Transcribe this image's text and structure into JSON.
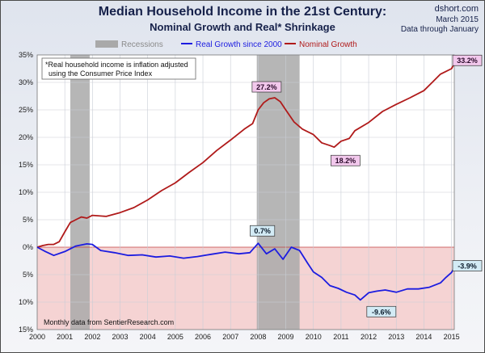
{
  "header": {
    "title": "Median Household Income in the 21st Century:",
    "subtitle": "Nominal  Growth and Real* Shrinkage",
    "source": "dshort.com",
    "date": "March 2015",
    "through": "Data through January"
  },
  "colors": {
    "nominal": "#b01a1a",
    "real": "#1c1ce0",
    "recession": "#a9a9a9",
    "negative_zone": "#f5d3d3",
    "callout_nominal_bg": "#f2c8ec",
    "callout_real_bg": "#d3ebf5"
  },
  "chart_data": {
    "type": "line",
    "title": "Median Household Income in the 21st Century:",
    "subtitle": "Nominal  Growth and Real* Shrinkage",
    "x_tick_labels": [
      "2000",
      "2001",
      "2002",
      "2003",
      "2004",
      "2005",
      "2006",
      "2007",
      "2008",
      "2009",
      "2010",
      "2011",
      "2012",
      "2013",
      "2014",
      "2015"
    ],
    "y_tick_labels": [
      "35%",
      "30%",
      "25%",
      "20%",
      "15%",
      "10%",
      "5%",
      "0%",
      "5%",
      "10%",
      "15%"
    ],
    "xlim": [
      2000,
      2015.1
    ],
    "ylim": [
      -15,
      35
    ],
    "y_ticks": [
      35,
      30,
      25,
      20,
      15,
      10,
      5,
      0,
      -5,
      -10,
      -15
    ],
    "legend": [
      {
        "label": "Recessions",
        "type": "recession"
      },
      {
        "label": "Real Growth since 2000",
        "type": "real"
      },
      {
        "label": "Nominal Growth",
        "type": "nominal"
      }
    ],
    "legend_position": "top",
    "recessions": [
      [
        2001.2,
        2001.9
      ],
      [
        2007.95,
        2009.5
      ]
    ],
    "note": "*Real household  income is inflation adjusted using  the Consumer Price Index",
    "footer_note": "Monthly data from SentierResearch.com",
    "series": [
      {
        "name": "Nominal Growth",
        "x": [
          2000,
          2000.2,
          2000.4,
          2000.6,
          2000.8,
          2001.0,
          2001.2,
          2001.4,
          2001.6,
          2001.8,
          2002.0,
          2002.5,
          2003.0,
          2003.5,
          2004.0,
          2004.5,
          2005.0,
          2005.5,
          2006.0,
          2006.5,
          2007.0,
          2007.5,
          2007.8,
          2008.0,
          2008.2,
          2008.4,
          2008.6,
          2008.8,
          2009.0,
          2009.3,
          2009.6,
          2010.0,
          2010.3,
          2010.6,
          2010.75,
          2011.0,
          2011.3,
          2011.5,
          2012.0,
          2012.5,
          2013.0,
          2013.5,
          2014.0,
          2014.3,
          2014.6,
          2014.8,
          2015.0,
          2015.08
        ],
        "values": [
          0,
          0.3,
          0.5,
          0.5,
          1.0,
          2.8,
          4.5,
          5.0,
          5.5,
          5.3,
          5.8,
          5.6,
          6.3,
          7.2,
          8.6,
          10.3,
          11.7,
          13.6,
          15.4,
          17.6,
          19.5,
          21.5,
          22.5,
          25.0,
          26.3,
          27.0,
          27.2,
          26.5,
          25.0,
          22.8,
          21.5,
          20.5,
          19.0,
          18.5,
          18.2,
          19.3,
          19.8,
          21.2,
          22.7,
          24.7,
          26.0,
          27.2,
          28.5,
          30.0,
          31.5,
          32.0,
          32.5,
          33.2
        ]
      },
      {
        "name": "Real Growth since 2000",
        "x": [
          2000,
          2000.3,
          2000.6,
          2001.0,
          2001.4,
          2001.8,
          2002.0,
          2002.3,
          2002.8,
          2003.3,
          2003.8,
          2004.3,
          2004.8,
          2005.3,
          2005.8,
          2006.3,
          2006.8,
          2007.3,
          2007.7,
          2008.0,
          2008.3,
          2008.6,
          2008.9,
          2009.2,
          2009.5,
          2009.8,
          2010.0,
          2010.3,
          2010.6,
          2010.9,
          2011.2,
          2011.5,
          2011.7,
          2012.0,
          2012.3,
          2012.6,
          2013.0,
          2013.4,
          2013.8,
          2014.2,
          2014.6,
          2014.8,
          2015.0,
          2015.08
        ],
        "values": [
          0,
          -0.8,
          -1.5,
          -0.8,
          0.2,
          0.6,
          0.5,
          -0.6,
          -1.0,
          -1.5,
          -1.4,
          -1.8,
          -1.6,
          -2.0,
          -1.7,
          -1.3,
          -0.9,
          -1.2,
          -1.0,
          0.7,
          -1.2,
          -0.3,
          -2.2,
          0.0,
          -0.6,
          -3.0,
          -4.5,
          -5.5,
          -7.0,
          -7.5,
          -8.2,
          -8.7,
          -9.6,
          -8.3,
          -8.0,
          -7.8,
          -8.2,
          -7.6,
          -7.6,
          -7.3,
          -6.5,
          -5.5,
          -4.6,
          -3.9
        ]
      }
    ],
    "annotations": [
      {
        "text": "27.2%",
        "x": 2008.6,
        "y": 27.2,
        "series": "Nominal Growth"
      },
      {
        "text": "18.2%",
        "x": 2010.75,
        "y": 18.2,
        "series": "Nominal Growth"
      },
      {
        "text": "33.2%",
        "x": 2015.08,
        "y": 33.2,
        "series": "Nominal Growth"
      },
      {
        "text": "0.7%",
        "x": 2008.0,
        "y": 0.7,
        "series": "Real Growth since 2000"
      },
      {
        "text": "-9.6%",
        "x": 2011.7,
        "y": -9.6,
        "series": "Real Growth since 2000"
      },
      {
        "text": "-3.9%",
        "x": 2015.08,
        "y": -3.9,
        "series": "Real Growth since 2000"
      }
    ]
  }
}
